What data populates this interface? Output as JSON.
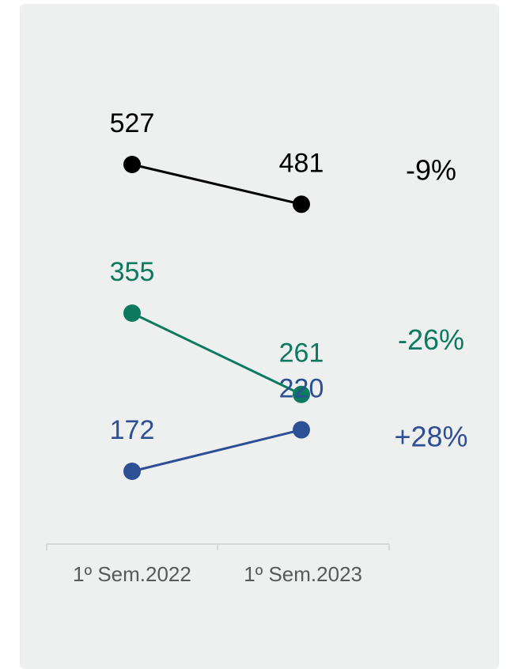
{
  "chart_data": {
    "type": "slope",
    "categories": [
      "1º Sem.2022",
      "1º Sem.2023"
    ],
    "series": [
      {
        "color": "#000000",
        "values": [
          527,
          481
        ],
        "change_label": "-9%"
      },
      {
        "color": "#0b7a5f",
        "values": [
          355,
          261
        ],
        "change_label": "-26%"
      },
      {
        "color": "#2d4f96",
        "values": [
          172,
          220
        ],
        "change_label": "+28%"
      }
    ]
  }
}
